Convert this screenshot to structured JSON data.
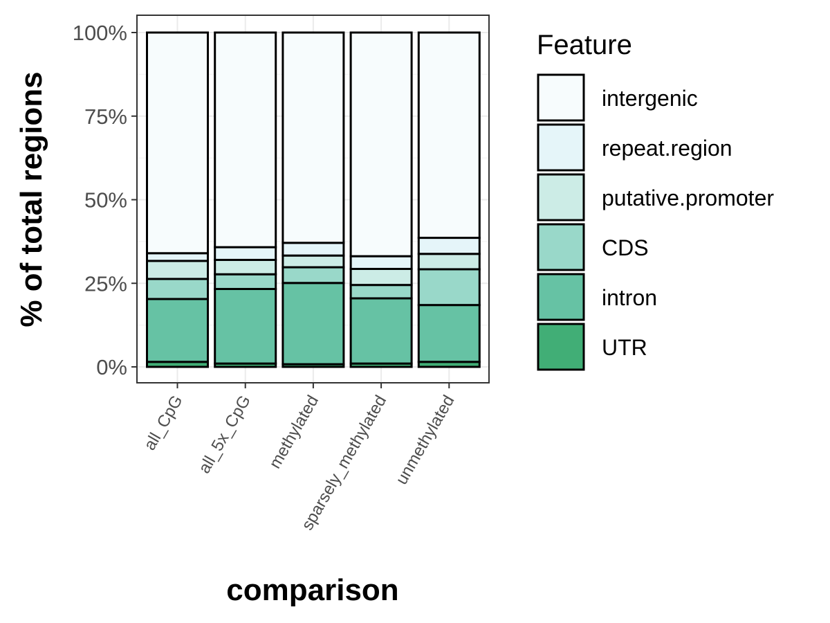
{
  "chart_data": {
    "type": "bar",
    "stacked": true,
    "percent": true,
    "categories": [
      "all_CpG",
      "all_5x_CpG",
      "methylated",
      "sparsely_methylated",
      "unmethylated"
    ],
    "series": [
      {
        "name": "UTR",
        "color": "#41ae76",
        "values": [
          1.5,
          1.0,
          0.8,
          1.0,
          1.5
        ]
      },
      {
        "name": "intron",
        "color": "#66c2a4",
        "values": [
          18.8,
          22.3,
          24.3,
          19.5,
          17.0
        ]
      },
      {
        "name": "CDS",
        "color": "#99d8c9",
        "values": [
          6.0,
          4.4,
          4.7,
          4.0,
          10.7
        ]
      },
      {
        "name": "putative.promoter",
        "color": "#ccece6",
        "values": [
          5.4,
          4.3,
          3.5,
          4.8,
          4.6
        ]
      },
      {
        "name": "repeat.region",
        "color": "#e5f5f9",
        "values": [
          2.3,
          3.8,
          3.8,
          3.8,
          4.8
        ]
      },
      {
        "name": "intergenic",
        "color": "#f7fcfd",
        "values": [
          66.0,
          64.2,
          62.9,
          66.9,
          61.4
        ]
      }
    ],
    "xlabel": "comparison",
    "ylabel": "% of total regions",
    "ylim": [
      0,
      100
    ],
    "yticks": [
      "0%",
      "25%",
      "50%",
      "75%",
      "100%"
    ],
    "ytick_values": [
      0,
      25,
      50,
      75,
      100
    ],
    "legend_title": "Feature",
    "legend_order": [
      "intergenic",
      "repeat.region",
      "putative.promoter",
      "CDS",
      "intron",
      "UTR"
    ],
    "legend_position": "right",
    "grid": true
  }
}
